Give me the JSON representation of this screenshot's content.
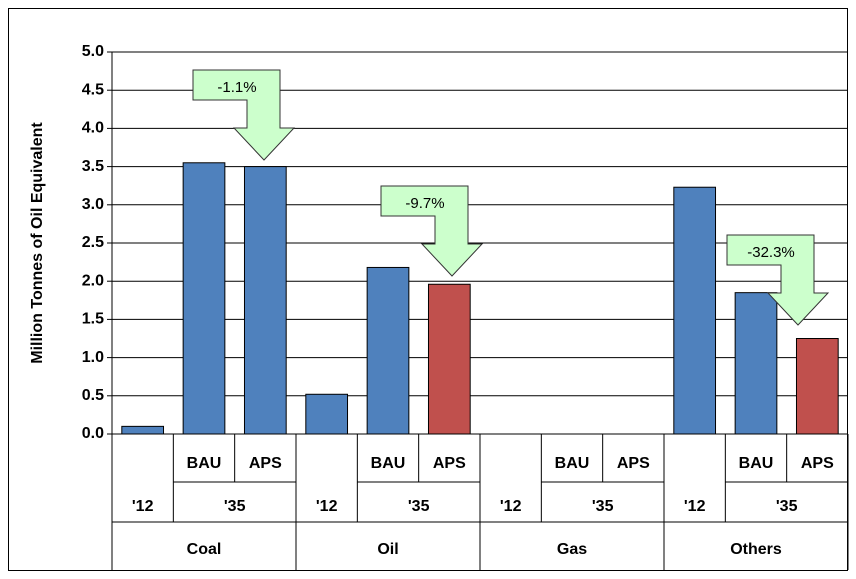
{
  "chart_data": {
    "type": "bar",
    "y_label": "Million Tonnes of Oil Equivalent",
    "categories": [
      null,
      "BAU",
      "APS",
      null,
      "BAU",
      "APS",
      null,
      "BAU",
      "APS",
      null,
      "BAU",
      "APS"
    ],
    "category_groups": [
      {
        "name": "Coal",
        "periods": [
          "'12",
          "'35"
        ]
      },
      {
        "name": "Oil",
        "periods": [
          "'12",
          "'35"
        ]
      },
      {
        "name": "Gas",
        "periods": [
          "'12",
          "'35"
        ]
      },
      {
        "name": "Others",
        "periods": [
          "'12",
          "'35"
        ]
      }
    ],
    "values": [
      0.1,
      3.55,
      3.5,
      0.52,
      2.18,
      1.96,
      0,
      0,
      0,
      3.23,
      1.85,
      1.25
    ],
    "colors": [
      "#4f81bd",
      "#4f81bd",
      "#4f81bd",
      "#4f81bd",
      "#4f81bd",
      "#c0504d",
      "#4f81bd",
      "#4f81bd",
      "#4f81bd",
      "#4f81bd",
      "#4f81bd",
      "#c0504d"
    ],
    "annotations": [
      "-1.1%",
      "-9.7%",
      "-32.3%"
    ],
    "ylim": [
      0,
      5
    ],
    "yticks": [
      {
        "value": 0,
        "label": "0.0"
      },
      0.5,
      {
        "value": 1,
        "label": "1.0"
      },
      1.5,
      {
        "value": 2,
        "label": "2.0"
      },
      2.5,
      {
        "value": 3,
        "label": "3.0"
      },
      3.5,
      {
        "value": 4,
        "label": "4.0"
      },
      4.5,
      {
        "value": 5,
        "label": "5.0"
      }
    ],
    "grid": true
  }
}
